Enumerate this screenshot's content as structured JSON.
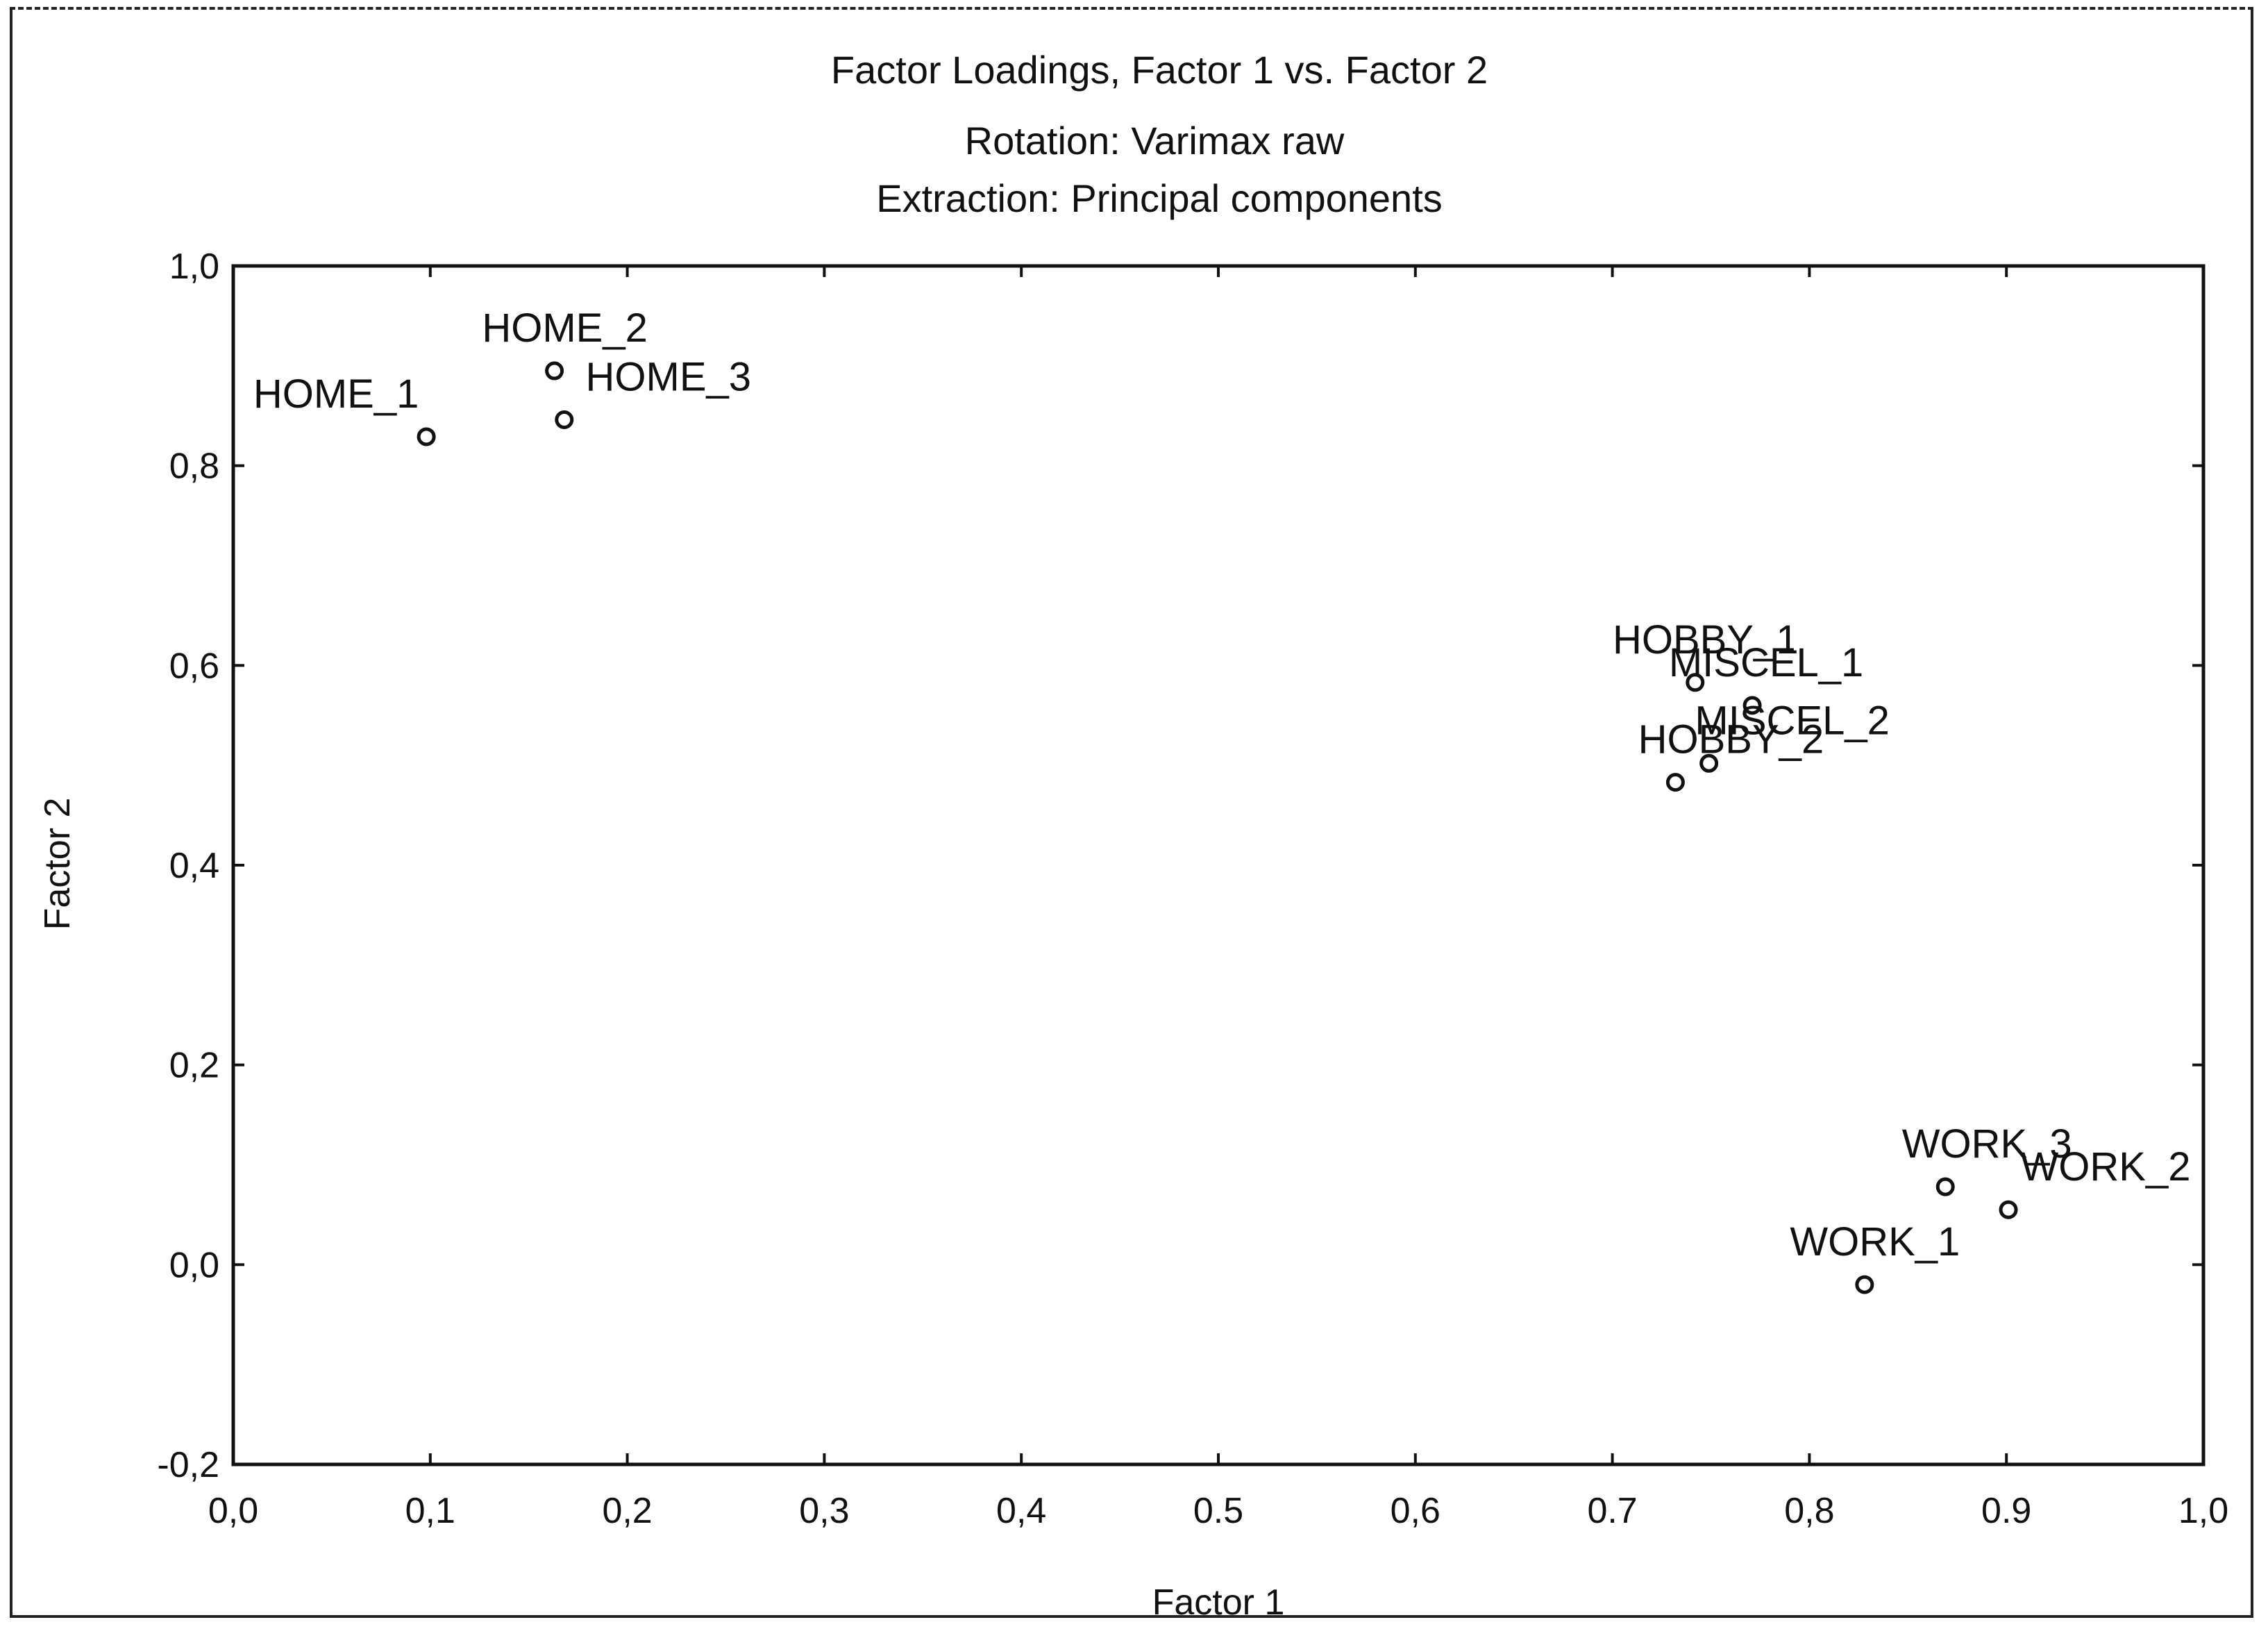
{
  "chart_data": {
    "type": "scatter",
    "title": "Factor Loadings, Factor 1 vs. Factor 2",
    "subtitle_lines": [
      "Rotation: Varimax raw",
      "Extraction: Principal components"
    ],
    "xlabel": "Factor 1",
    "ylabel": "Factor 2",
    "xlim": [
      0.0,
      1.0
    ],
    "ylim": [
      -0.2,
      1.0
    ],
    "x_ticks": [
      0.0,
      0.1,
      0.2,
      0.3,
      0.4,
      0.5,
      0.6,
      0.7,
      0.8,
      0.9,
      1.0
    ],
    "x_tick_labels": [
      "0,0",
      "0,1",
      "0,2",
      "0,3",
      "0,4",
      "0.5",
      "0,6",
      "0.7",
      "0,8",
      "0.9",
      "1,0"
    ],
    "y_ticks": [
      1.0,
      0.8,
      0.6,
      0.4,
      0.2,
      0.0,
      -0.2
    ],
    "y_tick_labels": [
      "1,0",
      "0,8",
      "0,6",
      "0,4",
      "0,2",
      "0,0",
      "-0,2"
    ],
    "grid": false,
    "marker": "open-circle",
    "points": [
      {
        "label": "HOME_1",
        "x": 0.098,
        "y": 0.829
      },
      {
        "label": "HOME_2",
        "x": 0.163,
        "y": 0.895
      },
      {
        "label": "HOME_3",
        "x": 0.168,
        "y": 0.846
      },
      {
        "label": "HOBBY_1",
        "x": 0.742,
        "y": 0.583
      },
      {
        "label": "MISCEL_1",
        "x": 0.771,
        "y": 0.56
      },
      {
        "label": "MISCEL_2",
        "x": 0.749,
        "y": 0.502
      },
      {
        "label": "HOBBY_2",
        "x": 0.732,
        "y": 0.483
      },
      {
        "label": "WORK_1",
        "x": 0.828,
        "y": -0.02
      },
      {
        "label": "WORK_2",
        "x": 0.901,
        "y": 0.055
      },
      {
        "label": "WORK_3",
        "x": 0.869,
        "y": 0.078
      }
    ]
  },
  "colors": {
    "ink": "#111111",
    "frame": "#222222",
    "background": "#ffffff"
  }
}
